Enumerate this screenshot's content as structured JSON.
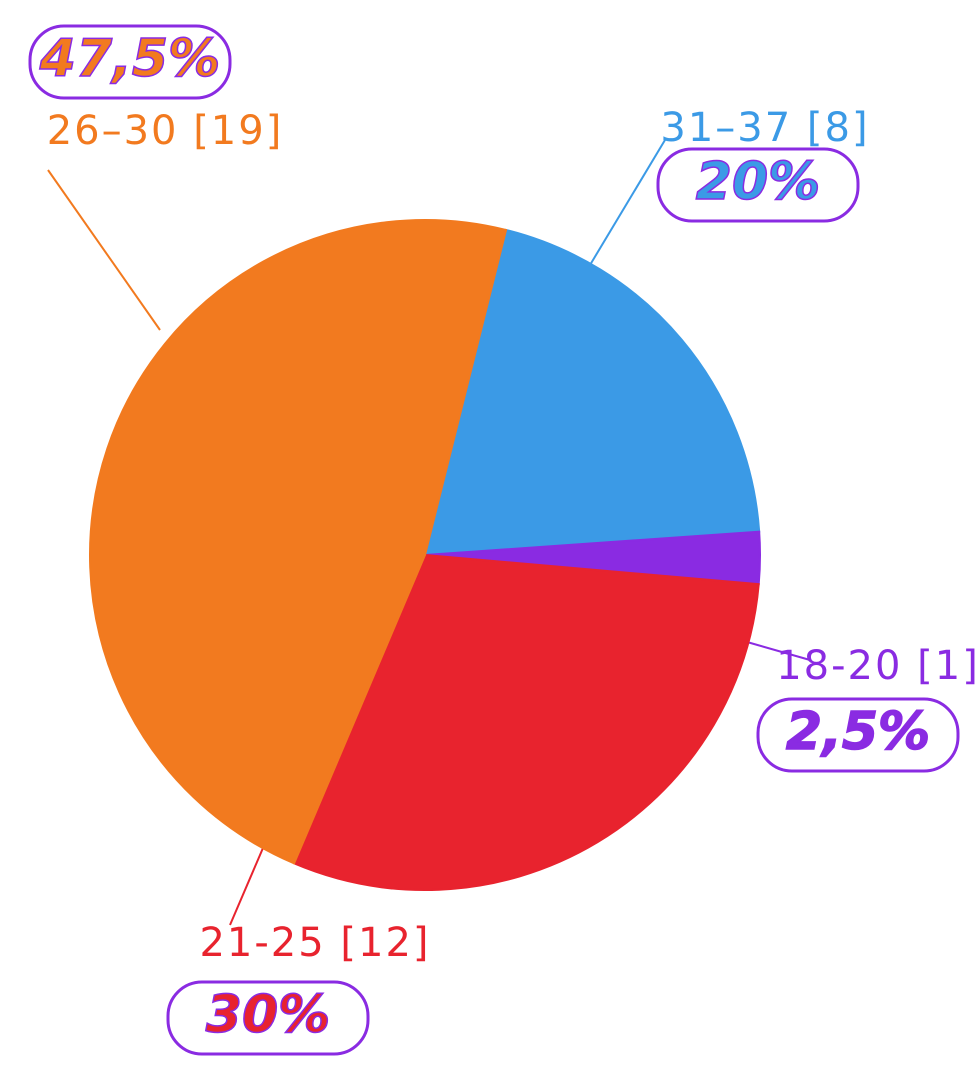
{
  "chart_data": {
    "type": "pie",
    "categories": [
      "31–37 [8]",
      "18-20 [1]",
      "21-25 [12]",
      "26–30 [19]"
    ],
    "values": [
      20,
      2.5,
      30,
      47.5
    ],
    "value_labels": [
      "20%",
      "2,5%",
      "30%",
      "47,5%"
    ],
    "colors": [
      "#3b9ae6",
      "#8a2be2",
      "#e8232e",
      "#f27a1f"
    ]
  }
}
